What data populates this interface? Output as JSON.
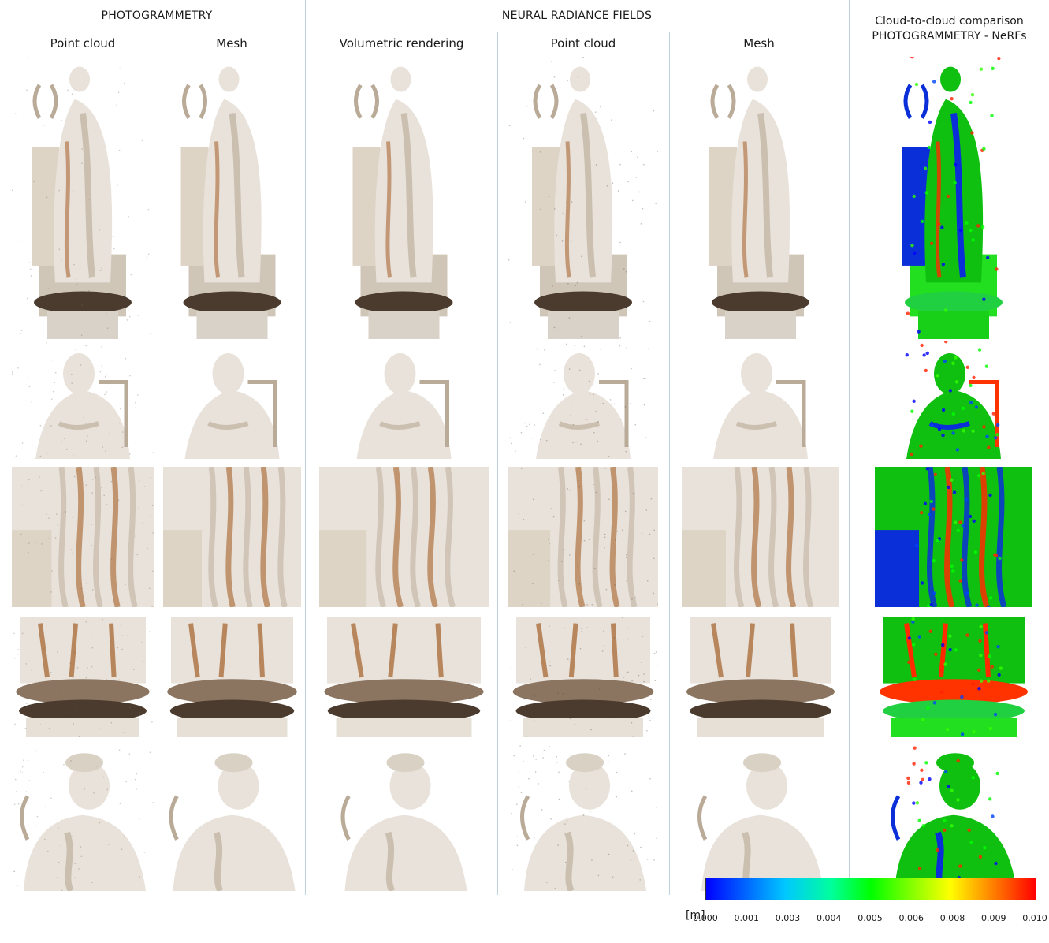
{
  "headers": {
    "photogrammetry": "PHOTOGRAMMETRY",
    "nerf": "NEURAL RADIANCE FIELDS",
    "c2c_line1": "Cloud-to-cloud comparison",
    "c2c_line2": "PHOTOGRAMMETRY - NeRFs"
  },
  "columns": {
    "photo_point_cloud": "Point cloud",
    "photo_mesh": "Mesh",
    "nerf_volumetric": "Volumetric rendering",
    "nerf_point_cloud": "Point cloud",
    "nerf_mesh": "Mesh"
  },
  "legend": {
    "unit": "[m]",
    "ticks": [
      "0.000",
      "0.001",
      "0.003",
      "0.004",
      "0.005",
      "0.006",
      "0.008",
      "0.009",
      "0.010"
    ],
    "min": 0.0,
    "max": 0.01,
    "colors": [
      "#0000ff",
      "#00c8ff",
      "#00ff00",
      "#ffff00",
      "#ff0000"
    ]
  },
  "palette": {
    "marble": "#e8e2da",
    "rust": "#b8865c",
    "dark_base": "#4a3b2e",
    "rule": "#bcd3de"
  }
}
